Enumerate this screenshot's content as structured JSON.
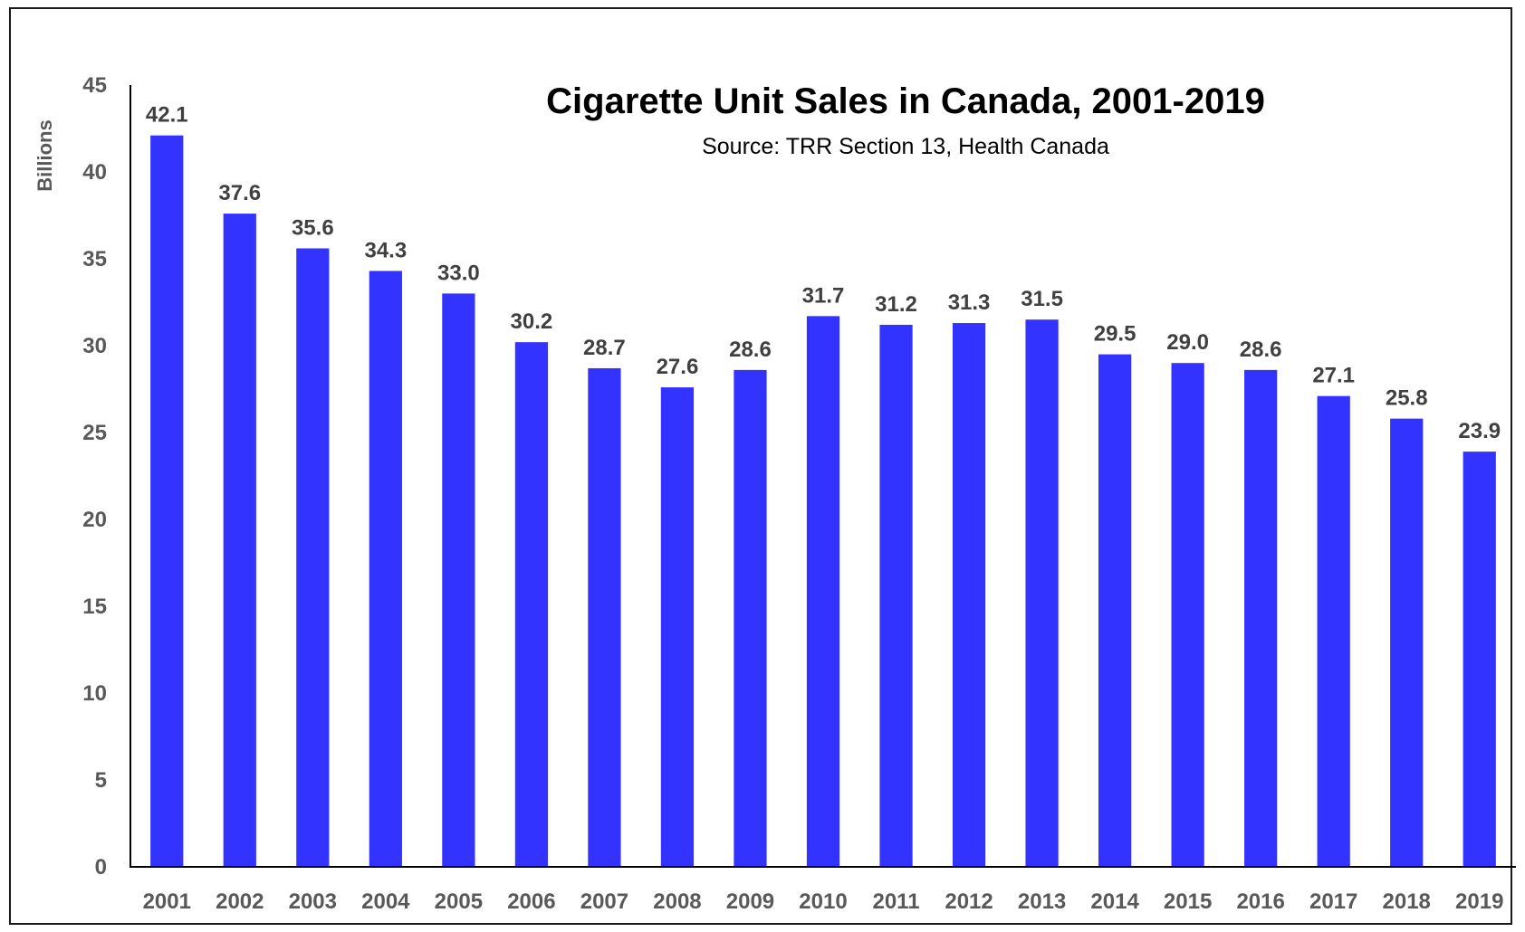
{
  "chart_data": {
    "type": "bar",
    "title": "Cigarette Unit Sales in Canada, 2001-2019",
    "subtitle": "Source: TRR Section 13, Health Canada",
    "xlabel": "",
    "ylabel": "Billions",
    "ylim": [
      0,
      45
    ],
    "yticks": [
      0,
      5,
      10,
      15,
      20,
      25,
      30,
      35,
      40,
      45
    ],
    "grid": false,
    "legend": "none",
    "bar_color": "#3333ff",
    "categories": [
      "2001",
      "2002",
      "2003",
      "2004",
      "2005",
      "2006",
      "2007",
      "2008",
      "2009",
      "2010",
      "2011",
      "2012",
      "2013",
      "2014",
      "2015",
      "2016",
      "2017",
      "2018",
      "2019"
    ],
    "values": [
      42.1,
      37.6,
      35.6,
      34.3,
      33.0,
      30.2,
      28.7,
      27.6,
      28.6,
      31.7,
      31.2,
      31.3,
      31.5,
      29.5,
      29.0,
      28.6,
      27.1,
      25.8,
      23.9
    ],
    "data_labels": [
      "42.1",
      "37.6",
      "35.6",
      "34.3",
      "33.0",
      "30.2",
      "28.7",
      "27.6",
      "28.6",
      "31.7",
      "31.2",
      "31.3",
      "31.5",
      "29.5",
      "29.0",
      "28.6",
      "27.1",
      "25.8",
      "23.9"
    ]
  }
}
